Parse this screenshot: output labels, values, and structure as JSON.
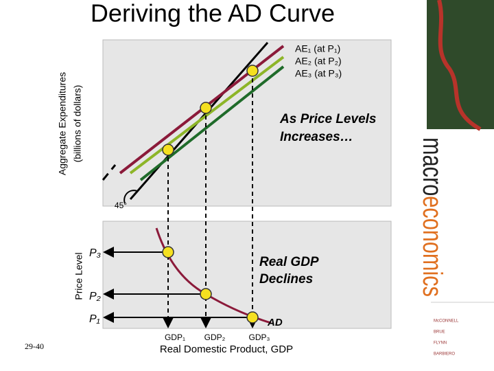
{
  "title": "Deriving the AD Curve",
  "upper_panel": {
    "y_axis_label": [
      "Aggregate Expenditures",
      "(billions of dollars)"
    ],
    "curve_labels": [
      "AE₁ (at P₁)",
      "AE₂ (at P₂)",
      "AE₃ (at P₃)"
    ],
    "annotation": [
      "As Price Levels",
      "Increases…"
    ],
    "angle_label": "45°"
  },
  "lower_panel": {
    "y_axis_label": "Price Level",
    "price_labels": [
      "P₃",
      "P₂",
      "P₁"
    ],
    "annotation": [
      "Real GDP",
      "Declines"
    ],
    "curve_label": "AD",
    "gdp_labels": [
      "GDP₁",
      "GDP₂",
      "GDP₃"
    ],
    "x_axis_label": "Real Domestic Product, GDP"
  },
  "slide_number": "29-40",
  "sidebar": {
    "brand": [
      "macro",
      "economics"
    ],
    "authors": [
      "McCONNELL",
      "BRUE",
      "FLYNN",
      "BARBIERO"
    ]
  }
}
